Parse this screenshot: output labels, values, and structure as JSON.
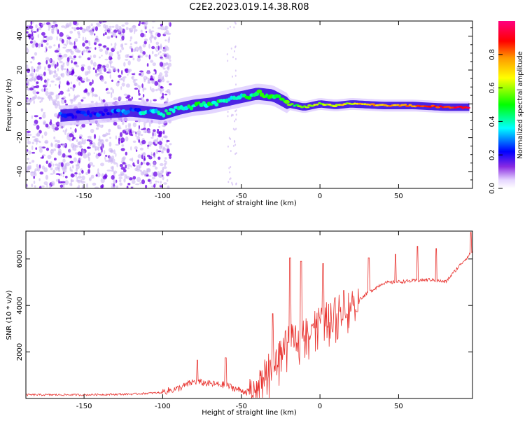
{
  "title": "C2E2.2023.019.14.38.R08",
  "colors": {
    "snr_line": "#e8332f",
    "dots_dark": "#6a00e6",
    "dots_light": "#c9b0f2",
    "axis": "#000000"
  },
  "chart_data": [
    {
      "type": "heatmap",
      "name": "spectrogram",
      "title": "C2E2.2023.019.14.38.R08",
      "xlabel": "Height of straight line (km)",
      "ylabel": "Frequency (Hz)",
      "xlim": [
        -187,
        97
      ],
      "ylim": [
        -50,
        49
      ],
      "xticks": [
        -150,
        -100,
        -50,
        0,
        50
      ],
      "yticks": [
        -40,
        -20,
        0,
        20,
        40
      ],
      "ridge": {
        "x": [
          -165,
          -150,
          -135,
          -120,
          -110,
          -100,
          -90,
          -80,
          -70,
          -60,
          -50,
          -40,
          -30,
          -20,
          -10,
          0,
          10,
          20,
          40,
          60,
          80,
          95
        ],
        "freq": [
          -7,
          -6,
          -5,
          -4,
          -5,
          -6,
          -3,
          -1,
          0,
          2,
          4,
          6,
          5,
          0,
          -2,
          0,
          -1,
          0,
          -1,
          -1,
          -2,
          -2
        ],
        "amplitude": [
          0.3,
          0.25,
          0.25,
          0.3,
          0.35,
          0.4,
          0.42,
          0.45,
          0.45,
          0.4,
          0.42,
          0.45,
          0.45,
          0.5,
          0.55,
          0.6,
          0.62,
          0.65,
          0.7,
          0.75,
          0.85,
          0.9
        ]
      },
      "colorbar": {
        "label": "Normalized spectral amplitude",
        "range": [
          0,
          1
        ],
        "ticks": [
          "0.0",
          "0.2",
          "0.4",
          "0.6",
          "0.8"
        ],
        "tick_values": [
          0,
          0.2,
          0.4,
          0.6,
          0.8
        ],
        "colormap": [
          "#ffffff",
          "#6a00e6",
          "#0000ff",
          "#00ffff",
          "#00ff00",
          "#ffff00",
          "#ff8000",
          "#ff0000",
          "#ff0080"
        ]
      }
    },
    {
      "type": "line",
      "name": "snr",
      "xlabel": "Height of straight line (km)",
      "ylabel": "SNR (10 * v/v)",
      "xlim": [
        -187,
        97
      ],
      "ylim": [
        0,
        7200
      ],
      "xticks": [
        -150,
        -100,
        -50,
        0,
        50
      ],
      "yticks": [
        2000,
        4000,
        6000
      ],
      "series": [
        {
          "name": "SNR",
          "x": [
            -187,
            -150,
            -120,
            -100,
            -90,
            -80,
            -70,
            -60,
            -50,
            -45,
            -40,
            -30,
            -20,
            -10,
            0,
            10,
            20,
            30,
            40,
            50,
            60,
            70,
            80,
            90,
            97
          ],
          "y": [
            150,
            150,
            180,
            250,
            400,
            700,
            600,
            550,
            300,
            250,
            450,
            1500,
            2400,
            2900,
            3300,
            3700,
            4000,
            4500,
            4950,
            5000,
            5050,
            5100,
            5000,
            5800,
            6300
          ],
          "spikes": [
            {
              "x": -78,
              "y": 1650
            },
            {
              "x": -60,
              "y": 1750
            },
            {
              "x": -30,
              "y": 3650
            },
            {
              "x": -19,
              "y": 6050
            },
            {
              "x": -12,
              "y": 5900
            },
            {
              "x": 2,
              "y": 5800
            },
            {
              "x": 15,
              "y": 4650
            },
            {
              "x": 31,
              "y": 6050
            },
            {
              "x": 48,
              "y": 6200
            },
            {
              "x": 62,
              "y": 6550
            },
            {
              "x": 74,
              "y": 6450
            },
            {
              "x": 96,
              "y": 7150
            }
          ]
        }
      ]
    }
  ]
}
